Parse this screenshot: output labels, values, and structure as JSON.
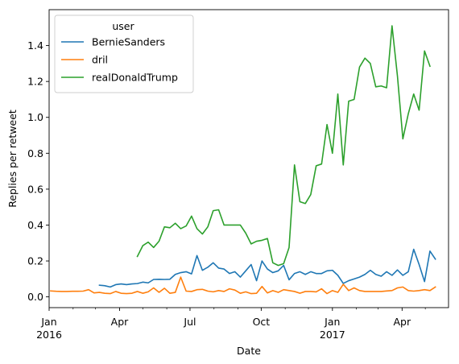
{
  "chart_data": {
    "type": "line",
    "xlabel": "Date",
    "ylabel": "Replies per retweet",
    "xlim": [
      "2016-01-01",
      "2017-05-31"
    ],
    "ylim": [
      -0.06,
      1.6
    ],
    "grid": false,
    "legend": {
      "title": "user",
      "placement": "top-left"
    },
    "x_ticks": [
      {
        "date": "2016-01-01",
        "label": "Jan",
        "sublabel": "2016"
      },
      {
        "date": "2016-04-01",
        "label": "Apr",
        "sublabel": ""
      },
      {
        "date": "2016-07-01",
        "label": "Jul",
        "sublabel": ""
      },
      {
        "date": "2016-10-01",
        "label": "Oct",
        "sublabel": ""
      },
      {
        "date": "2017-01-01",
        "label": "Jan",
        "sublabel": "2017"
      },
      {
        "date": "2017-04-01",
        "label": "Apr",
        "sublabel": ""
      }
    ],
    "y_ticks": [
      {
        "value": 0.0,
        "label": "0.0"
      },
      {
        "value": 0.2,
        "label": "0.2"
      },
      {
        "value": 0.4,
        "label": "0.4"
      },
      {
        "value": 0.6,
        "label": "0.6"
      },
      {
        "value": 0.8,
        "label": "0.8"
      },
      {
        "value": 1.0,
        "label": "1.0"
      },
      {
        "value": 1.2,
        "label": "1.2"
      },
      {
        "value": 1.4,
        "label": "1.4"
      }
    ],
    "series": [
      {
        "name": "BernieSanders",
        "color": "#1f77b4",
        "points": [
          [
            "2016-03-06",
            0.065
          ],
          [
            "2016-03-13",
            0.062
          ],
          [
            "2016-03-20",
            0.055
          ],
          [
            "2016-03-27",
            0.068
          ],
          [
            "2016-04-03",
            0.072
          ],
          [
            "2016-04-10",
            0.068
          ],
          [
            "2016-04-17",
            0.072
          ],
          [
            "2016-04-24",
            0.074
          ],
          [
            "2016-05-01",
            0.082
          ],
          [
            "2016-05-08",
            0.078
          ],
          [
            "2016-05-15",
            0.097
          ],
          [
            "2016-05-22",
            0.098
          ],
          [
            "2016-05-29",
            0.097
          ],
          [
            "2016-06-05",
            0.098
          ],
          [
            "2016-06-12",
            0.125
          ],
          [
            "2016-06-19",
            0.135
          ],
          [
            "2016-06-26",
            0.14
          ],
          [
            "2016-07-03",
            0.128
          ],
          [
            "2016-07-10",
            0.23
          ],
          [
            "2016-07-17",
            0.148
          ],
          [
            "2016-07-24",
            0.165
          ],
          [
            "2016-07-31",
            0.19
          ],
          [
            "2016-08-07",
            0.16
          ],
          [
            "2016-08-14",
            0.155
          ],
          [
            "2016-08-21",
            0.13
          ],
          [
            "2016-08-28",
            0.14
          ],
          [
            "2016-09-04",
            0.11
          ],
          [
            "2016-09-11",
            0.145
          ],
          [
            "2016-09-18",
            0.18
          ],
          [
            "2016-09-25",
            0.09
          ],
          [
            "2016-10-02",
            0.2
          ],
          [
            "2016-10-09",
            0.155
          ],
          [
            "2016-10-16",
            0.135
          ],
          [
            "2016-10-23",
            0.145
          ],
          [
            "2016-10-30",
            0.175
          ],
          [
            "2016-11-06",
            0.095
          ],
          [
            "2016-11-13",
            0.13
          ],
          [
            "2016-11-20",
            0.14
          ],
          [
            "2016-11-27",
            0.125
          ],
          [
            "2016-12-04",
            0.14
          ],
          [
            "2016-12-11",
            0.13
          ],
          [
            "2016-12-18",
            0.13
          ],
          [
            "2016-12-25",
            0.145
          ],
          [
            "2017-01-01",
            0.148
          ],
          [
            "2017-01-08",
            0.12
          ],
          [
            "2017-01-15",
            0.075
          ],
          [
            "2017-01-22",
            0.09
          ],
          [
            "2017-01-29",
            0.1
          ],
          [
            "2017-02-05",
            0.11
          ],
          [
            "2017-02-12",
            0.125
          ],
          [
            "2017-02-19",
            0.148
          ],
          [
            "2017-02-26",
            0.125
          ],
          [
            "2017-03-05",
            0.115
          ],
          [
            "2017-03-12",
            0.14
          ],
          [
            "2017-03-19",
            0.12
          ],
          [
            "2017-03-26",
            0.15
          ],
          [
            "2017-04-02",
            0.12
          ],
          [
            "2017-04-09",
            0.14
          ],
          [
            "2017-04-16",
            0.265
          ],
          [
            "2017-04-23",
            0.18
          ],
          [
            "2017-04-30",
            0.085
          ],
          [
            "2017-05-07",
            0.255
          ],
          [
            "2017-05-14",
            0.21
          ]
        ]
      },
      {
        "name": "dril",
        "color": "#ff7f0e",
        "points": [
          [
            "2016-01-03",
            0.033
          ],
          [
            "2016-01-10",
            0.031
          ],
          [
            "2016-01-17",
            0.03
          ],
          [
            "2016-01-24",
            0.03
          ],
          [
            "2016-01-31",
            0.031
          ],
          [
            "2016-02-07",
            0.031
          ],
          [
            "2016-02-14",
            0.032
          ],
          [
            "2016-02-21",
            0.04
          ],
          [
            "2016-02-28",
            0.022
          ],
          [
            "2016-03-06",
            0.025
          ],
          [
            "2016-03-13",
            0.02
          ],
          [
            "2016-03-20",
            0.018
          ],
          [
            "2016-03-27",
            0.03
          ],
          [
            "2016-04-03",
            0.02
          ],
          [
            "2016-04-10",
            0.018
          ],
          [
            "2016-04-17",
            0.02
          ],
          [
            "2016-04-24",
            0.03
          ],
          [
            "2016-05-01",
            0.02
          ],
          [
            "2016-05-08",
            0.028
          ],
          [
            "2016-05-15",
            0.05
          ],
          [
            "2016-05-22",
            0.025
          ],
          [
            "2016-05-29",
            0.048
          ],
          [
            "2016-06-05",
            0.02
          ],
          [
            "2016-06-12",
            0.025
          ],
          [
            "2016-06-19",
            0.11
          ],
          [
            "2016-06-26",
            0.032
          ],
          [
            "2016-07-03",
            0.03
          ],
          [
            "2016-07-10",
            0.04
          ],
          [
            "2016-07-17",
            0.042
          ],
          [
            "2016-07-24",
            0.032
          ],
          [
            "2016-07-31",
            0.028
          ],
          [
            "2016-08-07",
            0.035
          ],
          [
            "2016-08-14",
            0.03
          ],
          [
            "2016-08-21",
            0.045
          ],
          [
            "2016-08-28",
            0.038
          ],
          [
            "2016-09-04",
            0.02
          ],
          [
            "2016-09-11",
            0.028
          ],
          [
            "2016-09-18",
            0.018
          ],
          [
            "2016-09-25",
            0.02
          ],
          [
            "2016-10-02",
            0.058
          ],
          [
            "2016-10-09",
            0.022
          ],
          [
            "2016-10-16",
            0.035
          ],
          [
            "2016-10-23",
            0.025
          ],
          [
            "2016-10-30",
            0.04
          ],
          [
            "2016-11-06",
            0.035
          ],
          [
            "2016-11-13",
            0.03
          ],
          [
            "2016-11-20",
            0.02
          ],
          [
            "2016-11-27",
            0.03
          ],
          [
            "2016-12-04",
            0.03
          ],
          [
            "2016-12-11",
            0.028
          ],
          [
            "2016-12-18",
            0.045
          ],
          [
            "2016-12-25",
            0.018
          ],
          [
            "2017-01-01",
            0.035
          ],
          [
            "2017-01-08",
            0.025
          ],
          [
            "2017-01-15",
            0.07
          ],
          [
            "2017-01-22",
            0.035
          ],
          [
            "2017-01-29",
            0.05
          ],
          [
            "2017-02-05",
            0.035
          ],
          [
            "2017-02-12",
            0.03
          ],
          [
            "2017-02-19",
            0.03
          ],
          [
            "2017-02-26",
            0.03
          ],
          [
            "2017-03-05",
            0.03
          ],
          [
            "2017-03-12",
            0.033
          ],
          [
            "2017-03-19",
            0.035
          ],
          [
            "2017-03-26",
            0.05
          ],
          [
            "2017-04-02",
            0.055
          ],
          [
            "2017-04-09",
            0.035
          ],
          [
            "2017-04-16",
            0.032
          ],
          [
            "2017-04-23",
            0.035
          ],
          [
            "2017-04-30",
            0.04
          ],
          [
            "2017-05-07",
            0.035
          ],
          [
            "2017-05-14",
            0.055
          ]
        ]
      },
      {
        "name": "realDonaldTrump",
        "color": "#2ca02c",
        "points": [
          [
            "2016-04-24",
            0.225
          ],
          [
            "2016-05-01",
            0.285
          ],
          [
            "2016-05-08",
            0.305
          ],
          [
            "2016-05-15",
            0.275
          ],
          [
            "2016-05-22",
            0.31
          ],
          [
            "2016-05-29",
            0.39
          ],
          [
            "2016-06-05",
            0.385
          ],
          [
            "2016-06-12",
            0.41
          ],
          [
            "2016-06-19",
            0.38
          ],
          [
            "2016-06-26",
            0.395
          ],
          [
            "2016-07-03",
            0.45
          ],
          [
            "2016-07-10",
            0.38
          ],
          [
            "2016-07-17",
            0.35
          ],
          [
            "2016-07-24",
            0.39
          ],
          [
            "2016-07-31",
            0.48
          ],
          [
            "2016-08-07",
            0.485
          ],
          [
            "2016-08-14",
            0.4
          ],
          [
            "2016-08-21",
            0.4
          ],
          [
            "2016-08-28",
            0.4
          ],
          [
            "2016-09-04",
            0.4
          ],
          [
            "2016-09-11",
            0.355
          ],
          [
            "2016-09-18",
            0.295
          ],
          [
            "2016-09-25",
            0.31
          ],
          [
            "2016-10-02",
            0.315
          ],
          [
            "2016-10-09",
            0.325
          ],
          [
            "2016-10-16",
            0.19
          ],
          [
            "2016-10-23",
            0.175
          ],
          [
            "2016-10-30",
            0.185
          ],
          [
            "2016-11-06",
            0.275
          ],
          [
            "2016-11-13",
            0.735
          ],
          [
            "2016-11-20",
            0.53
          ],
          [
            "2016-11-27",
            0.52
          ],
          [
            "2016-12-04",
            0.57
          ],
          [
            "2016-12-11",
            0.73
          ],
          [
            "2016-12-18",
            0.74
          ],
          [
            "2016-12-25",
            0.96
          ],
          [
            "2017-01-01",
            0.8
          ],
          [
            "2017-01-08",
            1.13
          ],
          [
            "2017-01-15",
            0.735
          ],
          [
            "2017-01-22",
            1.09
          ],
          [
            "2017-01-29",
            1.1
          ],
          [
            "2017-02-05",
            1.28
          ],
          [
            "2017-02-12",
            1.33
          ],
          [
            "2017-02-19",
            1.3
          ],
          [
            "2017-02-26",
            1.17
          ],
          [
            "2017-03-05",
            1.175
          ],
          [
            "2017-03-12",
            1.165
          ],
          [
            "2017-03-19",
            1.51
          ],
          [
            "2017-03-26",
            1.23
          ],
          [
            "2017-04-02",
            0.88
          ],
          [
            "2017-04-09",
            1.02
          ],
          [
            "2017-04-16",
            1.13
          ],
          [
            "2017-04-23",
            1.04
          ],
          [
            "2017-04-30",
            1.37
          ],
          [
            "2017-05-07",
            1.285
          ]
        ]
      }
    ]
  }
}
